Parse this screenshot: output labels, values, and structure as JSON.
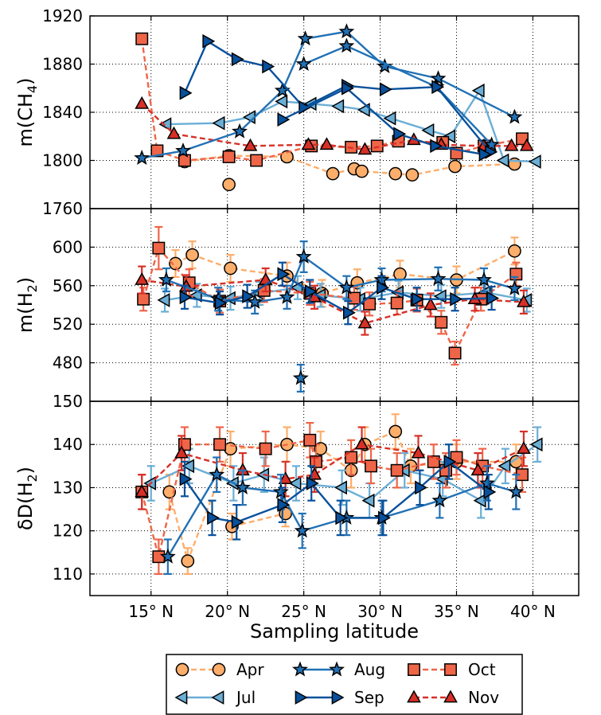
{
  "chart_data": {
    "type": "line",
    "xlabel": "Sampling latitude",
    "x_ticks": [
      15,
      20,
      25,
      30,
      35,
      40
    ],
    "x_tick_suffix": "° N",
    "xlim": [
      11,
      43
    ],
    "grid": true,
    "legend_placement": "bottom",
    "panels": [
      {
        "id": "ch4",
        "ylabel_main": "m(CH",
        "ylabel_sub": "4",
        "ylabel_end": ")",
        "ylim": [
          1760,
          1920
        ],
        "yticks": [
          1760,
          1800,
          1840,
          1880,
          1920
        ],
        "error_bars": false,
        "series": [
          {
            "name": "Apr",
            "x": [
              17.2,
              20.1,
              23.9,
              26.9,
              28.3,
              28.8,
              31.0,
              32.1,
              34.9,
              38.8
            ],
            "y": [
              1799,
              1804,
              1803,
              1789,
              1793,
              1791,
              1789,
              1788,
              1795,
              1797
            ]
          },
          {
            "name": "Apr",
            "x": [
              20.1
            ],
            "y": [
              1780
            ]
          },
          {
            "name": "Jul",
            "x": [
              16.0,
              19.5,
              21.5,
              23.6,
              25.5,
              27.3,
              29.0,
              30.7,
              33.2,
              34.6,
              36.5,
              38.1,
              40.2
            ],
            "y": [
              1830,
              1831,
              1836,
              1849,
              1847,
              1845,
              1842,
              1835,
              1825,
              1820,
              1858,
              1800,
              1799
            ]
          },
          {
            "name": "Aug",
            "x": [
              14.4,
              17.1,
              20.8,
              23.6,
              25.1,
              27.8,
              30.3,
              33.8,
              38.8
            ],
            "y": [
              1802,
              1808,
              1824,
              1858,
              1901,
              1907,
              1878,
              1868,
              1836
            ]
          },
          {
            "name": "Aug",
            "x": [
              25.0,
              27.8,
              33.7,
              37.3
            ],
            "y": [
              1880,
              1895,
              1861,
              1813
            ]
          },
          {
            "name": "Sep",
            "x": [
              17.2,
              18.7,
              20.6,
              22.6,
              25.0,
              27.8,
              30.3,
              33.7,
              37.2
            ],
            "y": [
              1856,
              1899,
              1884,
              1878,
              1844,
              1862,
              1859,
              1861,
              1807
            ]
          },
          {
            "name": "Sep",
            "x": [
              23.6,
              27.8,
              31.2,
              33.6,
              36.8
            ],
            "y": [
              1834,
              1860,
              1822,
              1812,
              1805
            ]
          },
          {
            "name": "Oct",
            "x": [
              14.4,
              15.4,
              17.2,
              20.1,
              21.9,
              25.5,
              28.1,
              29.8,
              31.2,
              34.1,
              35.0,
              36.8,
              39.3
            ],
            "y": [
              1901,
              1808,
              1800,
              1803,
              1800,
              1812,
              1811,
              1812,
              1816,
              1815,
              1806,
              1812,
              1818
            ]
          },
          {
            "name": "Nov",
            "x": [
              14.4,
              16.5,
              21.5,
              25.3,
              26.5,
              29.0,
              32.2,
              34.0,
              36.8,
              38.6,
              39.6
            ],
            "y": [
              1847,
              1822,
              1812,
              1813,
              1813,
              1809,
              1817,
              1813,
              1812,
              1812,
              1812
            ]
          }
        ]
      },
      {
        "id": "h2",
        "ylabel_main": "m(H",
        "ylabel_sub": "2",
        "ylabel_end": ")",
        "ylim": [
          440,
          640
        ],
        "yticks": [
          480,
          520,
          560,
          600
        ],
        "error_bars": true,
        "series": [
          {
            "name": "Apr",
            "x": [
              16.6,
              17.7,
              20.2,
              23.9,
              26.2,
              28.5,
              31.3,
              35.0,
              38.8
            ],
            "y": [
              583,
              592,
              578,
              570,
              552,
              563,
              572,
              566,
              596
            ],
            "err": [
              14,
              14,
              14,
              14,
              14,
              14,
              14,
              14,
              14
            ]
          },
          {
            "name": "Jul",
            "x": [
              15.9,
              18.0,
              20.2,
              22.1,
              24.6,
              26.1,
              28.7,
              31.2,
              34.0,
              36.9,
              39.6
            ],
            "y": [
              545,
              550,
              547,
              552,
              558,
              550,
              546,
              553,
              549,
              553,
              545
            ],
            "err": [
              12,
              12,
              12,
              12,
              12,
              12,
              12,
              12,
              12,
              12,
              12
            ]
          },
          {
            "name": "Aug",
            "x": [
              16.0,
              19.4,
              21.8,
              23.9,
              25.0,
              27.8,
              30.1,
              33.8,
              36.8,
              38.8
            ],
            "y": [
              566,
              546,
              543,
              548,
              590,
              558,
              566,
              567,
              566,
              557
            ],
            "err": [
              12,
              12,
              12,
              12,
              16,
              12,
              12,
              12,
              12,
              12
            ]
          },
          {
            "name": "Aug",
            "x": [
              24.8
            ],
            "y": [
              464
            ],
            "err": [
              14
            ]
          },
          {
            "name": "Sep",
            "x": [
              17.2,
              19.5,
              21.3,
              23.6,
              25.4,
              27.9,
              30.1,
              32.4,
              34.9,
              37.3
            ],
            "y": [
              548,
              542,
              549,
              572,
              554,
              532,
              558,
              546,
              546,
              547
            ],
            "err": [
              12,
              12,
              12,
              12,
              12,
              12,
              12,
              12,
              12,
              12
            ]
          },
          {
            "name": "Oct",
            "x": [
              14.5,
              15.5,
              17.5,
              19.5,
              22.4,
              25.4,
              28.3,
              29.3,
              31.1,
              32.4,
              34.0,
              34.9,
              36.6,
              38.9
            ],
            "y": [
              546,
              599,
              563,
              544,
              555,
              552,
              547,
              541,
              542,
              545,
              522,
              490,
              546,
              572
            ],
            "err": [
              12,
              22,
              14,
              12,
              12,
              12,
              12,
              12,
              12,
              12,
              12,
              12,
              12,
              12
            ]
          },
          {
            "name": "Nov",
            "x": [
              14.4,
              17.3,
              22.5,
              25.7,
              29.0,
              33.3,
              36.2,
              39.4
            ],
            "y": [
              566,
              559,
              566,
              548,
              521,
              540,
              546,
              543
            ],
            "err": [
              14,
              12,
              12,
              12,
              12,
              12,
              12,
              12
            ]
          }
        ]
      },
      {
        "id": "dd",
        "ylabel_main": "δD(H",
        "ylabel_sub": "2",
        "ylabel_end": ")",
        "ylim": [
          105,
          150
        ],
        "yticks": [
          110,
          120,
          130,
          140,
          150
        ],
        "error_bars": true,
        "series": [
          {
            "name": "Apr",
            "x": [
              16.2,
              17.4,
              20.2,
              23.9,
              26.1,
              28.1,
              29.0,
              31.0,
              32.0,
              35.0,
              38.9
            ],
            "y": [
              129,
              113,
              139,
              140,
              139,
              134,
              140,
              143,
              135,
              136,
              136
            ],
            "err": [
              4,
              3,
              4,
              4,
              4,
              4,
              4,
              4,
              4,
              4,
              4
            ]
          },
          {
            "name": "Apr",
            "x": [
              20.3,
              23.8
            ],
            "y": [
              121,
              124
            ],
            "err": [
              3,
              3
            ]
          },
          {
            "name": "Jul",
            "x": [
              15.0,
              17.5,
              20.4,
              22.4,
              24.5,
              27.5,
              29.3,
              31.6,
              34.1,
              36.6,
              38.2,
              40.3
            ],
            "y": [
              131,
              135,
              131,
              133,
              131,
              130,
              127,
              134,
              132,
              127,
              135,
              140
            ],
            "err": [
              4,
              4,
              4,
              4,
              4,
              4,
              4,
              4,
              4,
              4,
              4,
              4
            ]
          },
          {
            "name": "Aug",
            "x": [
              16.1,
              19.3,
              21.0,
              23.5,
              24.9,
              27.8,
              30.1,
              33.9,
              37.0,
              38.9
            ],
            "y": [
              114,
              133,
              130,
              129,
              120,
              123,
              123,
              127,
              131,
              129
            ],
            "err": [
              4,
              4,
              4,
              4,
              4,
              4,
              4,
              4,
              4,
              4
            ]
          },
          {
            "name": "Sep",
            "x": [
              17.2,
              19.0,
              20.6,
              23.6,
              25.5,
              27.4,
              30.2,
              32.6,
              34.5,
              37.1
            ],
            "y": [
              132,
              123,
              122,
              126,
              131,
              123,
              123,
              130,
              136,
              129
            ],
            "err": [
              4,
              4,
              4,
              4,
              4,
              4,
              4,
              4,
              4,
              4
            ]
          },
          {
            "name": "Oct",
            "x": [
              14.4,
              15.5,
              17.2,
              19.5,
              22.5,
              25.4,
              25.8,
              28.1,
              29.4,
              31.1,
              33.5,
              34.3,
              35.0,
              36.7,
              39.3
            ],
            "y": [
              129,
              114,
              140,
              140,
              139,
              141,
              136,
              137,
              135,
              134,
              136,
              134,
              137,
              135,
              133
            ],
            "err": [
              4,
              4,
              4,
              4,
              4,
              4,
              4,
              4,
              4,
              4,
              4,
              4,
              4,
              4,
              4
            ]
          },
          {
            "name": "Nov",
            "x": [
              14.4,
              17.0,
              21.0,
              23.8,
              25.7,
              28.8,
              32.5,
              36.4,
              39.4
            ],
            "y": [
              129,
              138,
              134,
              132,
              133,
              140,
              138,
              134,
              139
            ],
            "err": [
              4,
              4,
              4,
              4,
              4,
              4,
              4,
              4,
              4
            ]
          }
        ]
      }
    ],
    "legend": [
      {
        "name": "Apr",
        "marker": "circle",
        "color": "#fdae6b",
        "line": "dashed"
      },
      {
        "name": "Aug",
        "marker": "star",
        "color": "#2171b5",
        "line": "solid"
      },
      {
        "name": "Oct",
        "marker": "square",
        "color": "#ef6548",
        "line": "dashed"
      },
      {
        "name": "Jul",
        "marker": "triangle-left",
        "color": "#6baed6",
        "line": "solid"
      },
      {
        "name": "Sep",
        "marker": "triangle-right",
        "color": "#08519c",
        "line": "solid"
      },
      {
        "name": "Nov",
        "marker": "triangle-up",
        "color": "#d73027",
        "line": "dashed"
      }
    ]
  }
}
